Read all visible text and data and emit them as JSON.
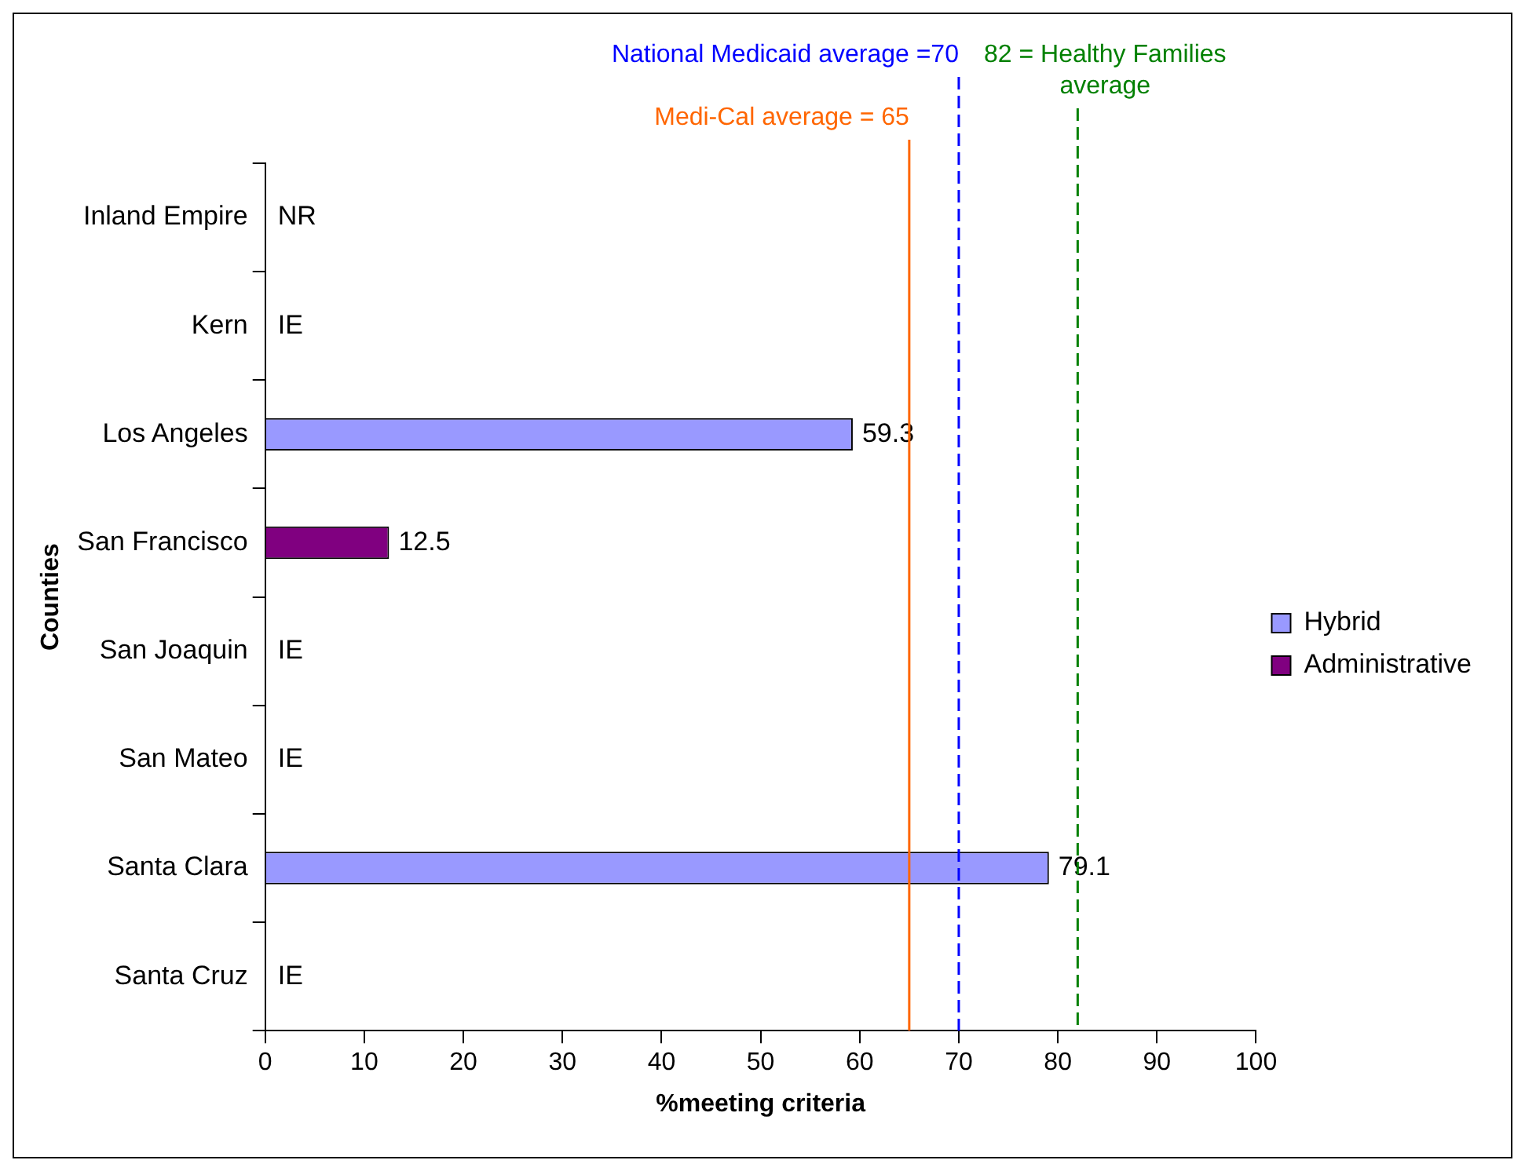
{
  "chart_data": {
    "type": "bar",
    "orientation": "horizontal",
    "xlabel": "%meeting criteria",
    "ylabel": "Counties",
    "categories": [
      "Inland Empire",
      "Kern",
      "Los Angeles",
      "San Francisco",
      "San Joaquin",
      "San Mateo",
      "Santa Clara",
      "Santa Cruz"
    ],
    "series": [
      {
        "name": "Hybrid",
        "color": "#9999ff",
        "values": [
          null,
          null,
          59.3,
          null,
          null,
          null,
          79.1,
          null
        ],
        "value_labels": [
          "NR",
          "IE",
          "59.3",
          null,
          "IE",
          "IE",
          "79.1",
          "IE"
        ]
      },
      {
        "name": "Administrative",
        "color": "#800080",
        "values": [
          null,
          null,
          null,
          12.5,
          null,
          null,
          null,
          null
        ],
        "value_labels": [
          null,
          null,
          null,
          "12.5",
          null,
          null,
          null,
          null
        ]
      }
    ],
    "xlim": [
      0,
      100
    ],
    "xticks": [
      0,
      10,
      20,
      30,
      40,
      50,
      60,
      70,
      80,
      90,
      100
    ],
    "legend": "right",
    "ref_lines": [
      {
        "axis": "x",
        "value": 65,
        "label": "Medi-Cal average = 65",
        "color": "#ff6600",
        "line_style": "solid"
      },
      {
        "axis": "x",
        "value": 70,
        "label": "National Medicaid average =70",
        "color": "#0000ff",
        "line_style": "dashed"
      },
      {
        "axis": "x",
        "value": 82,
        "label": "82 = Healthy Families average",
        "color": "#008000",
        "line_style": "dashed"
      }
    ]
  }
}
